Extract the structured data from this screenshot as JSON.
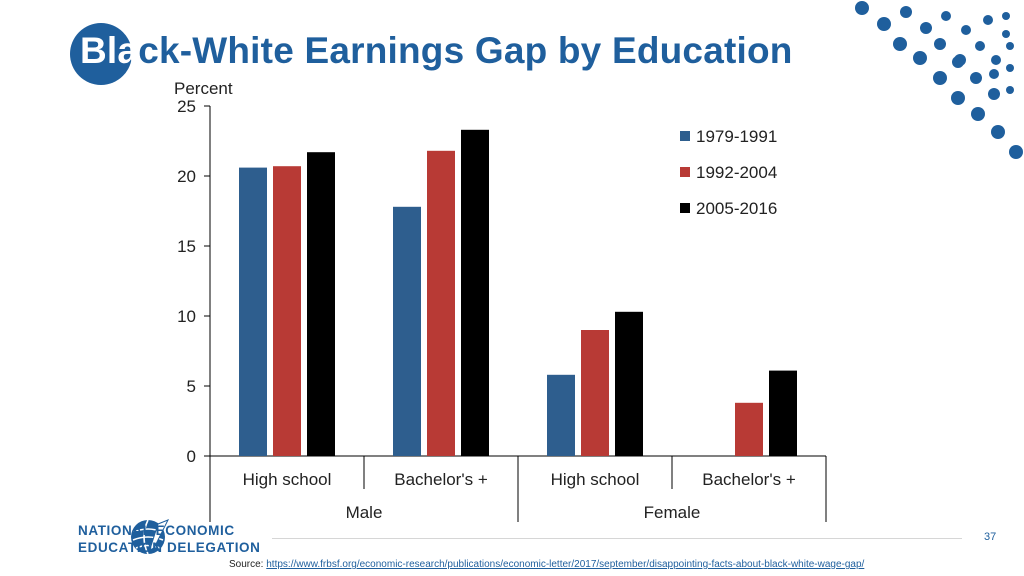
{
  "slide": {
    "title_prefix": "Bla",
    "title_rest": "ck-White Earnings Gap by Education",
    "page_number": "37",
    "source_label": "Source: ",
    "source_url": "https://www.frbsf.org/economic-research/publications/economic-letter/2017/september/disappointing-facts-about-black-white-wage-gap/",
    "logo": {
      "line1": "NATIONAL ECONOMIC",
      "line2": "EDUCATION DELEGATION",
      "icon": "globe-pen-icon"
    },
    "colors": {
      "brand": "#1f5f9d",
      "dots": "#1f5f9d"
    }
  },
  "chart_data": {
    "type": "bar",
    "ylabel": "Percent",
    "ylim": [
      0,
      25
    ],
    "yticks": [
      0,
      5,
      10,
      15,
      20,
      25
    ],
    "categories": [
      "High school",
      "Bachelor's +",
      "High school",
      "Bachelor's +"
    ],
    "groups": [
      {
        "label": "Male",
        "span": [
          0,
          1
        ]
      },
      {
        "label": "Female",
        "span": [
          2,
          3
        ]
      }
    ],
    "series": [
      {
        "name": "1979-1991",
        "color": "#2e5e8e",
        "values": [
          20.6,
          17.8,
          5.8,
          null
        ]
      },
      {
        "name": "1992-2004",
        "color": "#b83a35",
        "values": [
          20.7,
          21.8,
          9.0,
          3.8
        ]
      },
      {
        "name": "2005-2016",
        "color": "#000000",
        "values": [
          21.7,
          23.3,
          10.3,
          6.1
        ]
      }
    ],
    "legend_position": "top-right",
    "grid": false
  }
}
